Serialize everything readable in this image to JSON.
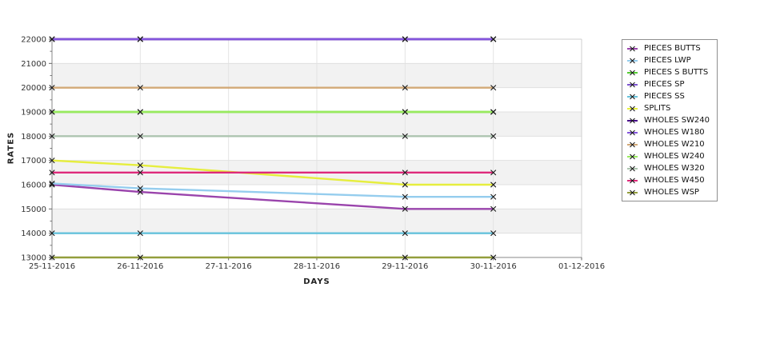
{
  "chart_data": {
    "type": "line",
    "xlabel": "DAYS",
    "ylabel": "RATES",
    "x_axis_tick_labels": [
      "25-11-2016",
      "26-11-2016",
      "27-11-2016",
      "28-11-2016",
      "29-11-2016",
      "30-11-2016",
      "01-12-2016"
    ],
    "x_data_dates": [
      "25-11-2016",
      "26-11-2016",
      "29-11-2016",
      "30-11-2016"
    ],
    "x_data_day_index": [
      0,
      1,
      4,
      5
    ],
    "ylim": [
      13000,
      22000
    ],
    "y_tick_step": 1000,
    "y_minor_tick_step": 500,
    "marker": "x",
    "marker_color": "#1a1a1a",
    "grid": true,
    "legend_position": "right",
    "band_fill_ranges": [
      [
        21000,
        20000
      ],
      [
        19000,
        18000
      ],
      [
        17000,
        16000
      ],
      [
        15000,
        14000
      ]
    ],
    "band_fill_color": "#f2f2f2",
    "gridline_color": "#e3e3e3",
    "series": [
      {
        "name": "PIECES BUTTS",
        "color": "#9a44ac",
        "values": [
          16000,
          15700,
          15000,
          15000
        ]
      },
      {
        "name": "PIECES LWP",
        "color": "#95cdee",
        "values": [
          16050,
          15850,
          15500,
          15500
        ]
      },
      {
        "name": "PIECES S BUTTS",
        "color": "#55cc33",
        "values": [
          19000,
          19000,
          19000,
          19000
        ]
      },
      {
        "name": "PIECES SP",
        "color": "#7d55cf",
        "values": [
          22000,
          22000,
          22000,
          22000
        ]
      },
      {
        "name": "PIECES SS",
        "color": "#66c2dc",
        "values": [
          14000,
          14000,
          14000,
          14000
        ]
      },
      {
        "name": "SPLITS",
        "color": "#e6ee3e",
        "values": [
          17000,
          16800,
          16000,
          16000
        ]
      },
      {
        "name": "WHOLES SW240",
        "color": "#4a0d8a",
        "values": [
          22000,
          22000,
          22000,
          22000
        ]
      },
      {
        "name": "WHOLES W180",
        "color": "#8455dd",
        "values": [
          22000,
          22000,
          22000,
          22000
        ]
      },
      {
        "name": "WHOLES W210",
        "color": "#d2a977",
        "values": [
          20000,
          20000,
          20000,
          20000
        ]
      },
      {
        "name": "WHOLES W240",
        "color": "#99ea5e",
        "values": [
          19000,
          19000,
          19000,
          19000
        ]
      },
      {
        "name": "WHOLES W320",
        "color": "#adc5b0",
        "values": [
          18000,
          18000,
          18000,
          18000
        ]
      },
      {
        "name": "WHOLES W450",
        "color": "#de2a7b",
        "values": [
          16500,
          16500,
          16500,
          16500
        ]
      },
      {
        "name": "WHOLES WSP",
        "color": "#939e3c",
        "values": [
          13000,
          13000,
          13000,
          13000
        ]
      }
    ]
  }
}
